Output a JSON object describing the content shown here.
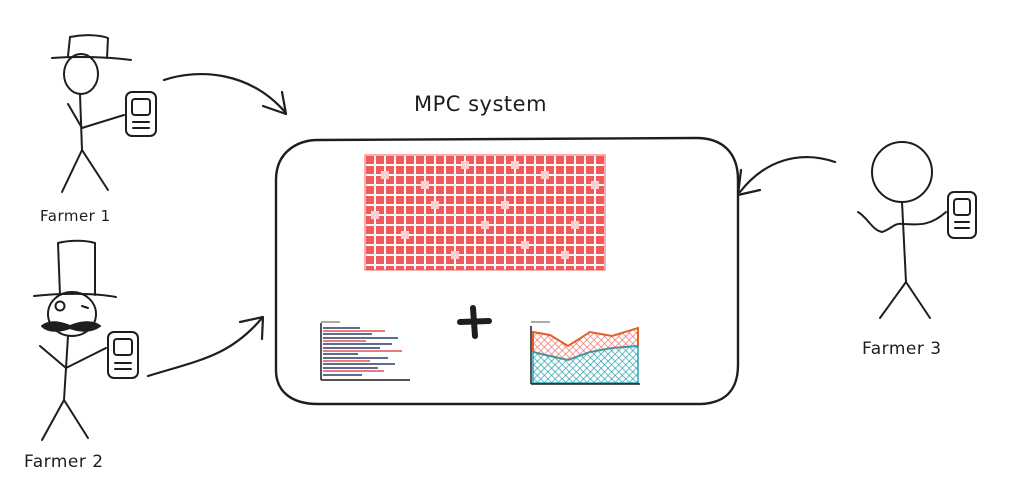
{
  "title": "MPC system",
  "farmers": [
    {
      "label": "Farmer 1"
    },
    {
      "label": "Farmer 2"
    },
    {
      "label": "Farmer 3"
    }
  ],
  "colors": {
    "ink": "#1e1e1e",
    "data_red": "#f05a5a",
    "data_red_light": "#ffd0d0",
    "chart_teal": "#2aa0b0",
    "chart_orange": "#e0612a",
    "chart_red": "#f08080"
  },
  "icons": [
    "phone-icon",
    "top-hat-icon",
    "monocle-icon",
    "mustache-icon",
    "plus-icon",
    "arrow-icon"
  ]
}
